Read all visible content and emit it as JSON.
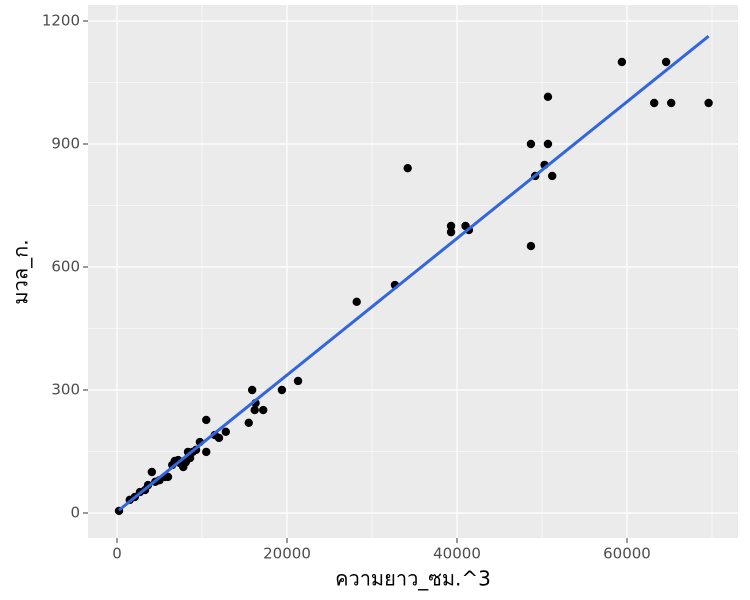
{
  "chart_data": {
    "type": "scatter",
    "x_label": "ความยาว_ซม.^3",
    "y_label": "มวล_ก.",
    "xlim": [
      -3412,
      73059
    ],
    "ylim": [
      -61,
      1239
    ],
    "xticks": [
      0,
      20000,
      40000,
      60000
    ],
    "yticks": [
      0,
      300,
      600,
      900,
      1200
    ],
    "grid": true,
    "series": [
      {
        "name": "points",
        "color": "#000000",
        "x": [
          235,
          1500,
          2100,
          2700,
          3300,
          3650,
          4100,
          4500,
          5000,
          5650,
          6000,
          6500,
          6800,
          7200,
          7400,
          7800,
          8100,
          8350,
          8600,
          8900,
          9300,
          9750,
          10500,
          10500,
          11500,
          12000,
          12800,
          15500,
          15900,
          16200,
          16300,
          17200,
          19400,
          21300,
          28200,
          32700,
          34200,
          39300,
          39300,
          41000,
          41400,
          48700,
          48700,
          49200,
          50300,
          50700,
          50700,
          51200,
          59400,
          63200,
          64600,
          65200,
          69600
        ],
        "values": [
          5,
          32,
          39,
          51,
          56,
          68,
          100,
          76,
          80,
          88,
          88,
          117,
          127,
          129,
          122,
          112,
          124,
          149,
          134,
          149,
          154,
          173,
          227,
          149,
          190,
          183,
          198,
          220,
          300,
          251,
          268,
          251,
          300,
          322,
          515,
          556,
          841,
          700,
          685,
          700,
          690,
          900,
          651,
          822,
          849,
          1015,
          900,
          822,
          1100,
          1000,
          1100,
          1000,
          1000
        ]
      },
      {
        "name": "fit",
        "color": "#3366dd",
        "x": [
          235,
          69600
        ],
        "values": [
          7,
          1163
        ]
      }
    ]
  }
}
